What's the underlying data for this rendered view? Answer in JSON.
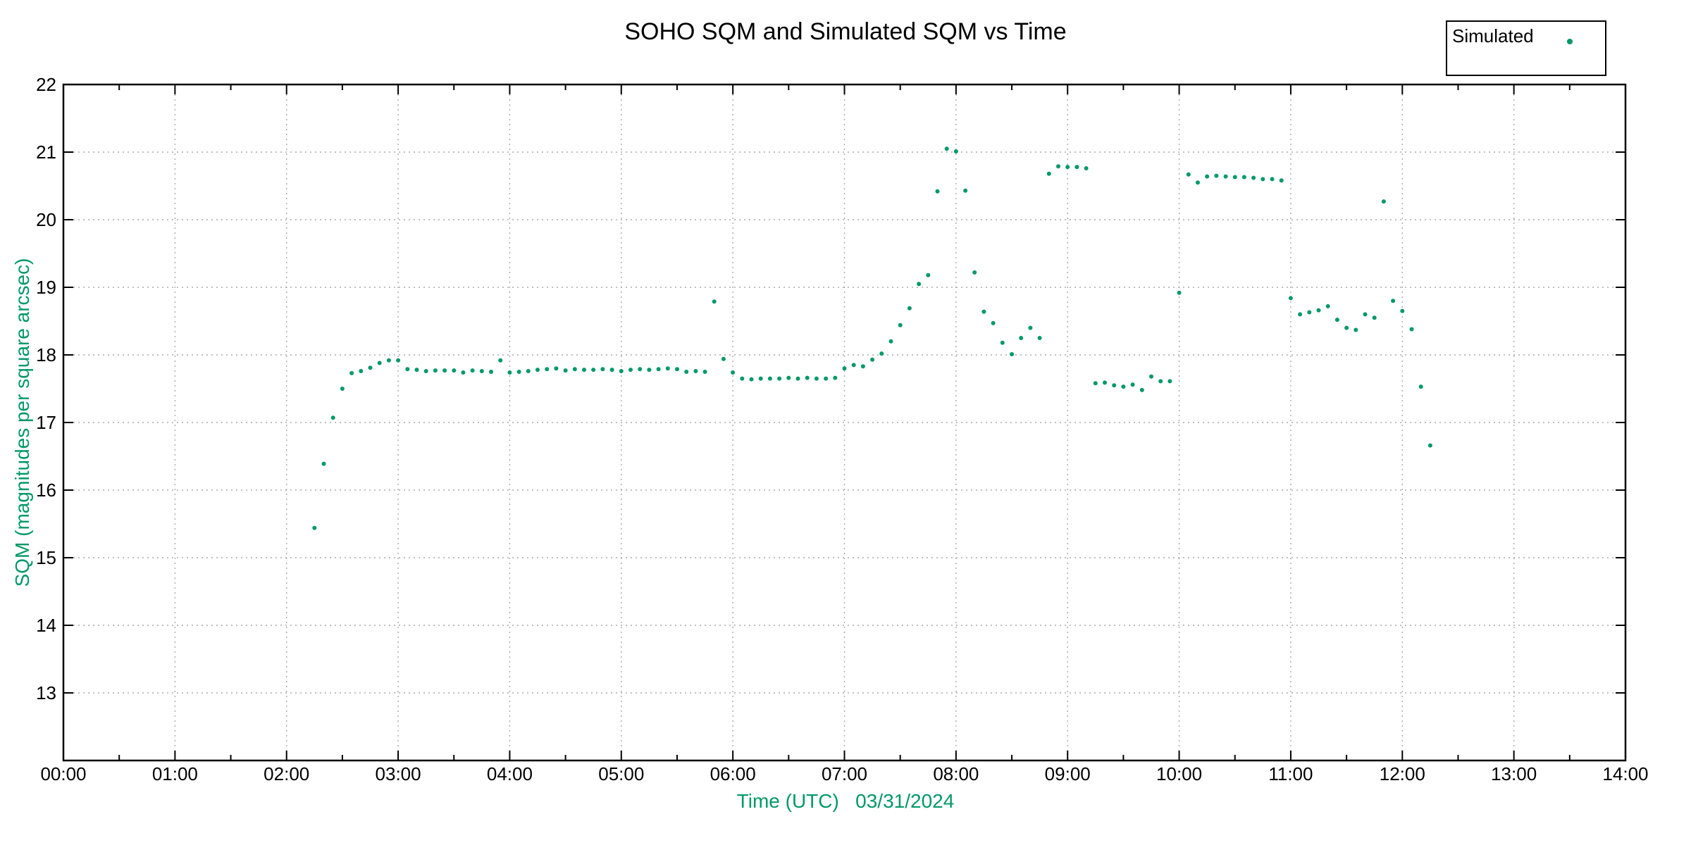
{
  "page": {
    "title": "SOHO SQM and Simulated SQM vs Time"
  },
  "colors": {
    "accent_green": "#009966",
    "grid": "#ababab",
    "frame": "#000000",
    "background": "#ffffff"
  },
  "legend": {
    "entries": [
      {
        "label": "Simulated",
        "marker": "dot-icon",
        "color": "#009966"
      }
    ]
  },
  "chart_data": {
    "type": "scatter",
    "title": "SOHO SQM and Simulated SQM vs Time",
    "xlabel": "Time (UTC)   03/31/2024",
    "ylabel": "SQM (magnitudes per square arcsec)",
    "xlim_hours": [
      0,
      14
    ],
    "ylim": [
      12,
      22
    ],
    "x_tick_labels": [
      "00:00",
      "01:00",
      "02:00",
      "03:00",
      "04:00",
      "05:00",
      "06:00",
      "07:00",
      "08:00",
      "09:00",
      "10:00",
      "11:00",
      "12:00",
      "13:00",
      "14:00"
    ],
    "x_minor_step_hours": 0.5,
    "y_tick_values": [
      13,
      14,
      15,
      16,
      17,
      18,
      19,
      20,
      21,
      22
    ],
    "grid": "dotted",
    "legend_position": "top-right",
    "series": [
      {
        "name": "Simulated",
        "marker": "circle",
        "marker_color": "#009966",
        "points": [
          [
            "02:15",
            15.44
          ],
          [
            "02:20",
            16.39
          ],
          [
            "02:25",
            17.07
          ],
          [
            "02:30",
            17.5
          ],
          [
            "02:35",
            17.73
          ],
          [
            "02:40",
            17.76
          ],
          [
            "02:45",
            17.81
          ],
          [
            "02:50",
            17.88
          ],
          [
            "02:55",
            17.92
          ],
          [
            "03:00",
            17.92
          ],
          [
            "03:05",
            17.79
          ],
          [
            "03:10",
            17.78
          ],
          [
            "03:15",
            17.76
          ],
          [
            "03:20",
            17.77
          ],
          [
            "03:25",
            17.77
          ],
          [
            "03:30",
            17.77
          ],
          [
            "03:35",
            17.74
          ],
          [
            "03:40",
            17.77
          ],
          [
            "03:45",
            17.76
          ],
          [
            "03:50",
            17.75
          ],
          [
            "03:55",
            17.92
          ],
          [
            "04:00",
            17.74
          ],
          [
            "04:05",
            17.75
          ],
          [
            "04:10",
            17.76
          ],
          [
            "04:15",
            17.78
          ],
          [
            "04:20",
            17.79
          ],
          [
            "04:25",
            17.8
          ],
          [
            "04:30",
            17.77
          ],
          [
            "04:35",
            17.79
          ],
          [
            "04:40",
            17.78
          ],
          [
            "04:45",
            17.78
          ],
          [
            "04:50",
            17.79
          ],
          [
            "04:55",
            17.78
          ],
          [
            "05:00",
            17.76
          ],
          [
            "05:05",
            17.78
          ],
          [
            "05:10",
            17.79
          ],
          [
            "05:15",
            17.78
          ],
          [
            "05:20",
            17.79
          ],
          [
            "05:25",
            17.8
          ],
          [
            "05:30",
            17.79
          ],
          [
            "05:35",
            17.75
          ],
          [
            "05:40",
            17.76
          ],
          [
            "05:45",
            17.75
          ],
          [
            "05:50",
            18.79
          ],
          [
            "05:55",
            17.94
          ],
          [
            "06:00",
            17.74
          ],
          [
            "06:05",
            17.65
          ],
          [
            "06:10",
            17.64
          ],
          [
            "06:15",
            17.65
          ],
          [
            "06:20",
            17.65
          ],
          [
            "06:25",
            17.65
          ],
          [
            "06:30",
            17.66
          ],
          [
            "06:35",
            17.65
          ],
          [
            "06:40",
            17.66
          ],
          [
            "06:45",
            17.65
          ],
          [
            "06:50",
            17.65
          ],
          [
            "06:55",
            17.66
          ],
          [
            "07:00",
            17.8
          ],
          [
            "07:05",
            17.85
          ],
          [
            "07:10",
            17.83
          ],
          [
            "07:15",
            17.93
          ],
          [
            "07:20",
            18.02
          ],
          [
            "07:25",
            18.2
          ],
          [
            "07:30",
            18.44
          ],
          [
            "07:35",
            18.69
          ],
          [
            "07:40",
            19.05
          ],
          [
            "07:45",
            19.18
          ],
          [
            "07:50",
            20.42
          ],
          [
            "07:55",
            21.05
          ],
          [
            "08:00",
            21.01
          ],
          [
            "08:05",
            20.43
          ],
          [
            "08:10",
            19.22
          ],
          [
            "08:15",
            18.64
          ],
          [
            "08:20",
            18.47
          ],
          [
            "08:25",
            18.18
          ],
          [
            "08:30",
            18.01
          ],
          [
            "08:35",
            18.25
          ],
          [
            "08:40",
            18.4
          ],
          [
            "08:45",
            18.25
          ],
          [
            "08:50",
            20.68
          ],
          [
            "08:55",
            20.79
          ],
          [
            "09:00",
            20.78
          ],
          [
            "09:05",
            20.78
          ],
          [
            "09:10",
            20.76
          ],
          [
            "09:15",
            17.58
          ],
          [
            "09:20",
            17.59
          ],
          [
            "09:25",
            17.55
          ],
          [
            "09:30",
            17.53
          ],
          [
            "09:35",
            17.56
          ],
          [
            "09:40",
            17.48
          ],
          [
            "09:45",
            17.68
          ],
          [
            "09:50",
            17.61
          ],
          [
            "09:55",
            17.61
          ],
          [
            "10:00",
            18.92
          ],
          [
            "10:05",
            20.67
          ],
          [
            "10:10",
            20.55
          ],
          [
            "10:15",
            20.64
          ],
          [
            "10:20",
            20.65
          ],
          [
            "10:25",
            20.64
          ],
          [
            "10:30",
            20.63
          ],
          [
            "10:35",
            20.63
          ],
          [
            "10:40",
            20.62
          ],
          [
            "10:45",
            20.6
          ],
          [
            "10:50",
            20.6
          ],
          [
            "10:55",
            20.58
          ],
          [
            "11:00",
            18.84
          ],
          [
            "11:05",
            18.6
          ],
          [
            "11:10",
            18.63
          ],
          [
            "11:15",
            18.66
          ],
          [
            "11:20",
            18.72
          ],
          [
            "11:25",
            18.52
          ],
          [
            "11:30",
            18.4
          ],
          [
            "11:35",
            18.37
          ],
          [
            "11:40",
            18.6
          ],
          [
            "11:45",
            18.55
          ],
          [
            "11:50",
            20.27
          ],
          [
            "11:55",
            18.8
          ],
          [
            "12:00",
            18.65
          ],
          [
            "12:05",
            18.38
          ],
          [
            "12:10",
            17.53
          ],
          [
            "12:15",
            16.66
          ]
        ]
      }
    ]
  }
}
